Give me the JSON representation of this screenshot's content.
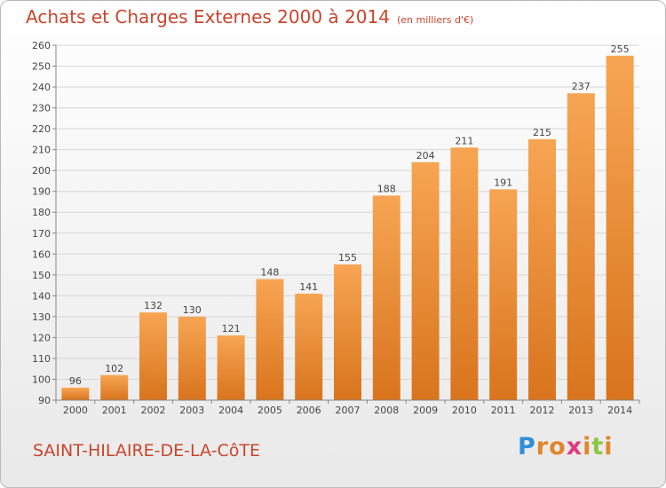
{
  "title": "Achats et Charges Externes 2000 à 2014",
  "unit_note": "(en milliers d'€)",
  "commune": "SAINT-HILAIRE-DE-LA-CôTE",
  "logo": {
    "letters": [
      "P",
      "r",
      "o",
      "x",
      "i",
      "t",
      "i"
    ],
    "colors": [
      "#2f8fd8",
      "#e2862a",
      "#e2862a",
      "#e23a7a",
      "#e2862a",
      "#8cc63f",
      "#e2862a"
    ]
  },
  "chart_data": {
    "type": "bar",
    "categories": [
      "2000",
      "2001",
      "2002",
      "2003",
      "2004",
      "2005",
      "2006",
      "2007",
      "2008",
      "2009",
      "2010",
      "2011",
      "2012",
      "2013",
      "2014"
    ],
    "values": [
      96,
      102,
      132,
      130,
      121,
      148,
      141,
      155,
      188,
      204,
      211,
      191,
      215,
      237,
      255
    ],
    "ylim": [
      90,
      260
    ],
    "yticks": [
      90,
      100,
      110,
      120,
      130,
      140,
      150,
      160,
      170,
      180,
      190,
      200,
      210,
      220,
      230,
      240,
      250,
      260
    ],
    "grid": true,
    "bar_color": "#f0923a"
  }
}
